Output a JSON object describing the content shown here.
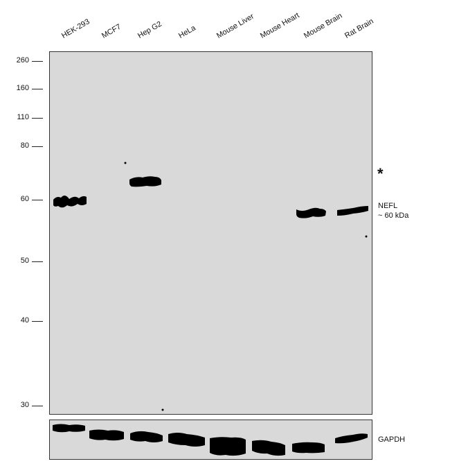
{
  "lanes": [
    "HEK-293",
    "MCF7",
    "Hep G2",
    "HeLa",
    "Mouse Liver",
    "Mouse Heart",
    "Mouse Brain",
    "Rat Brain"
  ],
  "markers": [
    "260",
    "160",
    "110",
    "80",
    "60",
    "50",
    "40",
    "30"
  ],
  "annotations": {
    "asterisk": "*",
    "target_name": "NEFL",
    "target_size": "~ 60 kDa",
    "loading_control": "GAPDH"
  },
  "colors": {
    "membrane": "#d9d9d9",
    "band": "#000000",
    "frame": "#333333"
  }
}
